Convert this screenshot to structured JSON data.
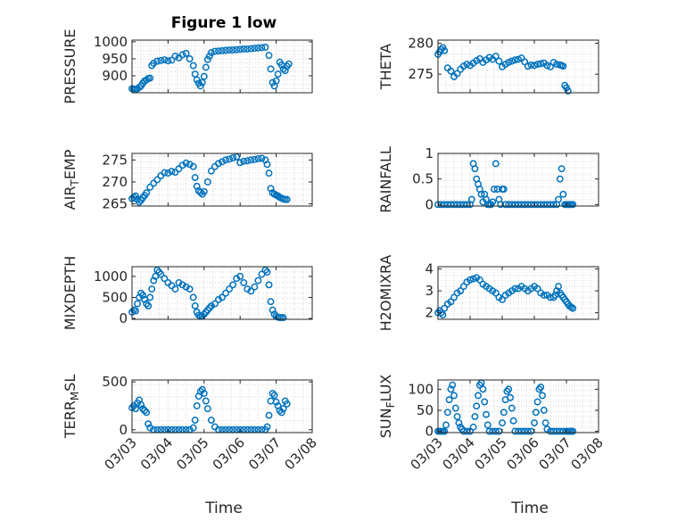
{
  "figure": {
    "title": "Figure 1 low",
    "x_tick_labels": [
      "03/03",
      "03/04",
      "03/05",
      "03/06",
      "03/07",
      "03/08"
    ],
    "xlabel": "Time"
  },
  "chart_data": [
    {
      "type": "scatter",
      "ylabel": "PRESSURE",
      "ylim": [
        850,
        1005
      ],
      "yticks": [
        900,
        950,
        1000
      ],
      "marker_color": "#0072BD",
      "grid": true,
      "x": [
        0.0,
        0.05,
        0.1,
        0.15,
        0.2,
        0.25,
        0.3,
        0.35,
        0.4,
        0.45,
        0.5,
        0.55,
        0.6,
        0.7,
        0.8,
        0.9,
        1.0,
        1.1,
        1.2,
        1.3,
        1.4,
        1.5,
        1.6,
        1.7,
        1.75,
        1.8,
        1.85,
        1.9,
        1.95,
        2.0,
        2.05,
        2.1,
        2.15,
        2.2,
        2.3,
        2.4,
        2.5,
        2.6,
        2.7,
        2.8,
        2.9,
        3.0,
        3.1,
        3.2,
        3.3,
        3.4,
        3.5,
        3.6,
        3.7,
        3.8,
        3.85,
        3.9,
        3.95,
        4.0,
        4.05,
        4.1,
        4.15,
        4.2,
        4.25,
        4.3,
        4.35
      ],
      "y": [
        862,
        861,
        860,
        862,
        866,
        870,
        878,
        885,
        888,
        892,
        893,
        930,
        937,
        943,
        945,
        947,
        944,
        946,
        958,
        953,
        962,
        966,
        950,
        930,
        905,
        888,
        878,
        870,
        880,
        898,
        925,
        948,
        958,
        968,
        972,
        973,
        974,
        975,
        976,
        976,
        977,
        978,
        979,
        979,
        980,
        981,
        982,
        983,
        984,
        960,
        920,
        880,
        870,
        885,
        905,
        940,
        932,
        920,
        915,
        928,
        935
      ]
    },
    {
      "type": "scatter",
      "ylabel": "THETA",
      "ylim": [
        272,
        280.5
      ],
      "yticks": [
        275,
        280
      ],
      "marker_color": "#0072BD",
      "grid": true,
      "x": [
        0.0,
        0.05,
        0.1,
        0.15,
        0.2,
        0.3,
        0.4,
        0.5,
        0.6,
        0.7,
        0.8,
        0.9,
        1.0,
        1.1,
        1.2,
        1.3,
        1.4,
        1.5,
        1.6,
        1.7,
        1.8,
        1.9,
        2.0,
        2.1,
        2.2,
        2.3,
        2.4,
        2.5,
        2.6,
        2.7,
        2.8,
        2.9,
        3.0,
        3.1,
        3.2,
        3.3,
        3.4,
        3.5,
        3.6,
        3.7,
        3.8,
        3.85,
        3.9,
        3.95,
        4.0,
        4.05
      ],
      "y": [
        278.2,
        278.6,
        279.0,
        279.3,
        278.8,
        276.0,
        275.5,
        274.6,
        275.1,
        275.8,
        276.3,
        276.6,
        276.4,
        276.8,
        277.2,
        277.5,
        276.9,
        277.3,
        277.7,
        277.4,
        277.9,
        277.1,
        276.2,
        276.6,
        276.9,
        277.1,
        277.3,
        277.4,
        277.6,
        277.0,
        276.3,
        276.5,
        276.4,
        276.6,
        276.7,
        276.8,
        276.4,
        276.2,
        276.9,
        276.6,
        276.5,
        276.4,
        276.3,
        273.2,
        272.8,
        272.3
      ]
    },
    {
      "type": "scatter",
      "ylabel": "AIR_TEMP",
      "ylim": [
        264.5,
        276.5
      ],
      "yticks": [
        265,
        270,
        275
      ],
      "marker_color": "#0072BD",
      "grid": true,
      "x": [
        0.0,
        0.05,
        0.1,
        0.15,
        0.2,
        0.25,
        0.3,
        0.35,
        0.4,
        0.5,
        0.6,
        0.7,
        0.8,
        0.9,
        1.0,
        1.1,
        1.2,
        1.3,
        1.4,
        1.5,
        1.6,
        1.7,
        1.75,
        1.8,
        1.85,
        1.9,
        1.95,
        2.0,
        2.1,
        2.2,
        2.3,
        2.4,
        2.5,
        2.6,
        2.7,
        2.8,
        2.9,
        3.0,
        3.1,
        3.2,
        3.3,
        3.4,
        3.5,
        3.6,
        3.7,
        3.75,
        3.8,
        3.85,
        3.9,
        3.95,
        4.0,
        4.05,
        4.1,
        4.15,
        4.2,
        4.25,
        4.3
      ],
      "y": [
        266.2,
        266.5,
        266.8,
        266.0,
        265.4,
        265.8,
        266.4,
        266.9,
        267.5,
        268.8,
        269.7,
        270.5,
        271.4,
        272.1,
        272.0,
        272.4,
        272.2,
        273.0,
        273.8,
        274.3,
        274.0,
        273.5,
        271.0,
        269.0,
        268.0,
        267.6,
        267.2,
        267.8,
        270.0,
        272.5,
        273.5,
        274.2,
        274.6,
        275.0,
        275.2,
        275.5,
        275.7,
        274.4,
        274.7,
        274.8,
        275.0,
        275.1,
        275.3,
        275.4,
        275.0,
        274.0,
        272.0,
        268.5,
        267.5,
        267.2,
        267.0,
        266.8,
        266.5,
        266.3,
        266.1,
        266.0,
        266.0
      ]
    },
    {
      "type": "scatter",
      "ylabel": "RAINFALL",
      "ylim": [
        -0.03,
        1.0
      ],
      "yticks": [
        0,
        0.5,
        1
      ],
      "marker_color": "#0072BD",
      "grid": true,
      "x": [
        0.0,
        0.1,
        0.2,
        0.3,
        0.4,
        0.5,
        0.6,
        0.7,
        0.8,
        0.9,
        1.0,
        1.05,
        1.1,
        1.15,
        1.2,
        1.25,
        1.3,
        1.35,
        1.4,
        1.45,
        1.5,
        1.55,
        1.6,
        1.65,
        1.7,
        1.75,
        1.8,
        1.85,
        1.9,
        1.95,
        2.0,
        2.05,
        2.1,
        2.2,
        2.3,
        2.4,
        2.5,
        2.6,
        2.7,
        2.8,
        2.9,
        3.0,
        3.1,
        3.2,
        3.3,
        3.4,
        3.5,
        3.6,
        3.7,
        3.75,
        3.8,
        3.85,
        3.9,
        3.95,
        4.0,
        4.05,
        4.1,
        4.15,
        4.2
      ],
      "y": [
        0,
        0,
        0,
        0,
        0,
        0,
        0,
        0,
        0,
        0,
        0,
        0.1,
        0.8,
        0.7,
        0.5,
        0.4,
        0.3,
        0.2,
        0.05,
        0.2,
        0.1,
        0,
        0,
        0,
        0.05,
        0.3,
        0.8,
        0.3,
        0.1,
        0,
        0.3,
        0.3,
        0,
        0,
        0,
        0,
        0,
        0,
        0,
        0,
        0,
        0,
        0,
        0,
        0,
        0,
        0,
        0,
        0,
        0.1,
        0.5,
        0.7,
        0.2,
        0,
        0,
        0,
        0,
        0,
        0
      ]
    },
    {
      "type": "scatter",
      "ylabel": "MIXDEPTH",
      "ylim": [
        -20,
        1230
      ],
      "yticks": [
        0,
        500,
        1000
      ],
      "marker_color": "#0072BD",
      "grid": true,
      "x": [
        0.0,
        0.05,
        0.1,
        0.15,
        0.2,
        0.25,
        0.3,
        0.35,
        0.4,
        0.45,
        0.5,
        0.55,
        0.6,
        0.65,
        0.7,
        0.75,
        0.8,
        0.9,
        1.0,
        1.1,
        1.2,
        1.3,
        1.4,
        1.5,
        1.6,
        1.7,
        1.75,
        1.8,
        1.85,
        1.9,
        1.95,
        2.0,
        2.05,
        2.1,
        2.15,
        2.2,
        2.3,
        2.4,
        2.5,
        2.6,
        2.7,
        2.8,
        2.9,
        3.0,
        3.1,
        3.2,
        3.3,
        3.4,
        3.5,
        3.6,
        3.7,
        3.75,
        3.8,
        3.85,
        3.9,
        3.95,
        4.0,
        4.05,
        4.1,
        4.15,
        4.2
      ],
      "y": [
        150,
        200,
        180,
        350,
        500,
        600,
        550,
        450,
        350,
        300,
        500,
        700,
        900,
        1000,
        1150,
        1100,
        1050,
        950,
        850,
        780,
        700,
        850,
        800,
        750,
        700,
        500,
        300,
        150,
        80,
        50,
        60,
        100,
        150,
        200,
        250,
        300,
        350,
        450,
        500,
        600,
        700,
        800,
        950,
        1000,
        850,
        700,
        650,
        750,
        900,
        1050,
        1150,
        1100,
        800,
        400,
        200,
        100,
        50,
        30,
        20,
        20,
        20
      ]
    },
    {
      "type": "scatter",
      "ylabel": "H2OMIXRA",
      "ylim": [
        1.7,
        4.1
      ],
      "yticks": [
        2,
        3,
        4
      ],
      "marker_color": "#0072BD",
      "grid": true,
      "x": [
        0.0,
        0.05,
        0.1,
        0.15,
        0.2,
        0.3,
        0.4,
        0.5,
        0.6,
        0.7,
        0.8,
        0.9,
        1.0,
        1.1,
        1.2,
        1.3,
        1.4,
        1.5,
        1.6,
        1.7,
        1.8,
        1.9,
        2.0,
        2.1,
        2.2,
        2.3,
        2.4,
        2.5,
        2.6,
        2.7,
        2.8,
        2.9,
        3.0,
        3.1,
        3.2,
        3.3,
        3.4,
        3.5,
        3.6,
        3.65,
        3.7,
        3.75,
        3.8,
        3.85,
        3.9,
        3.95,
        4.0,
        4.05,
        4.1,
        4.15,
        4.2
      ],
      "y": [
        2.0,
        2.1,
        2.0,
        1.9,
        2.2,
        2.4,
        2.5,
        2.7,
        2.9,
        3.0,
        3.2,
        3.4,
        3.5,
        3.55,
        3.6,
        3.5,
        3.3,
        3.2,
        3.1,
        3.0,
        2.9,
        2.7,
        2.6,
        2.8,
        2.9,
        3.0,
        3.1,
        3.1,
        3.2,
        3.1,
        3.0,
        3.1,
        3.2,
        3.1,
        2.9,
        2.8,
        2.8,
        2.7,
        2.7,
        2.8,
        3.0,
        3.2,
        2.9,
        2.8,
        2.7,
        2.6,
        2.5,
        2.4,
        2.3,
        2.25,
        2.2
      ]
    },
    {
      "type": "scatter",
      "ylabel": "TERR_MSL",
      "ylim": [
        -30,
        520
      ],
      "yticks": [
        0,
        500
      ],
      "marker_color": "#0072BD",
      "grid": true,
      "x": [
        0.0,
        0.05,
        0.1,
        0.15,
        0.2,
        0.25,
        0.3,
        0.35,
        0.4,
        0.45,
        0.5,
        0.6,
        0.7,
        0.8,
        0.9,
        1.0,
        1.1,
        1.2,
        1.3,
        1.4,
        1.5,
        1.6,
        1.7,
        1.75,
        1.8,
        1.85,
        1.9,
        1.95,
        2.0,
        2.05,
        2.1,
        2.2,
        2.3,
        2.4,
        2.5,
        2.6,
        2.7,
        2.8,
        2.9,
        3.0,
        3.1,
        3.2,
        3.3,
        3.4,
        3.5,
        3.6,
        3.7,
        3.75,
        3.8,
        3.85,
        3.9,
        3.95,
        4.0,
        4.05,
        4.1,
        4.15,
        4.2,
        4.25,
        4.3
      ],
      "y": [
        230,
        250,
        220,
        280,
        310,
        260,
        220,
        200,
        180,
        60,
        20,
        0,
        0,
        0,
        0,
        0,
        0,
        0,
        0,
        0,
        0,
        0,
        20,
        100,
        250,
        350,
        400,
        420,
        380,
        300,
        220,
        100,
        30,
        0,
        0,
        0,
        0,
        0,
        0,
        0,
        0,
        0,
        0,
        0,
        0,
        0,
        0,
        30,
        150,
        300,
        380,
        360,
        290,
        250,
        200,
        180,
        220,
        300,
        270
      ]
    },
    {
      "type": "scatter",
      "ylabel": "SUN_FLUX",
      "ylim": [
        -3,
        122
      ],
      "yticks": [
        0,
        50,
        100
      ],
      "marker_color": "#0072BD",
      "grid": true,
      "x": [
        0.0,
        0.05,
        0.1,
        0.15,
        0.2,
        0.25,
        0.3,
        0.35,
        0.4,
        0.45,
        0.5,
        0.55,
        0.6,
        0.65,
        0.7,
        0.75,
        0.8,
        0.9,
        1.0,
        1.1,
        1.15,
        1.2,
        1.25,
        1.3,
        1.35,
        1.4,
        1.45,
        1.5,
        1.55,
        1.6,
        1.7,
        1.8,
        1.9,
        2.0,
        2.05,
        2.1,
        2.15,
        2.2,
        2.25,
        2.3,
        2.35,
        2.4,
        2.5,
        2.6,
        2.7,
        2.8,
        2.9,
        3.0,
        3.05,
        3.1,
        3.15,
        3.2,
        3.25,
        3.3,
        3.35,
        3.4,
        3.5,
        3.6,
        3.7,
        3.8,
        3.9,
        4.0,
        4.05,
        4.1,
        4.15,
        4.2
      ],
      "y": [
        0,
        0,
        0,
        0,
        0,
        15,
        45,
        75,
        100,
        110,
        85,
        55,
        35,
        20,
        10,
        5,
        0,
        0,
        0,
        10,
        35,
        60,
        85,
        110,
        115,
        100,
        70,
        40,
        15,
        0,
        0,
        0,
        0,
        20,
        45,
        75,
        95,
        100,
        80,
        55,
        25,
        0,
        0,
        0,
        0,
        0,
        0,
        20,
        45,
        70,
        100,
        105,
        85,
        50,
        20,
        5,
        0,
        0,
        0,
        0,
        0,
        0,
        0,
        0,
        0,
        0
      ]
    }
  ]
}
